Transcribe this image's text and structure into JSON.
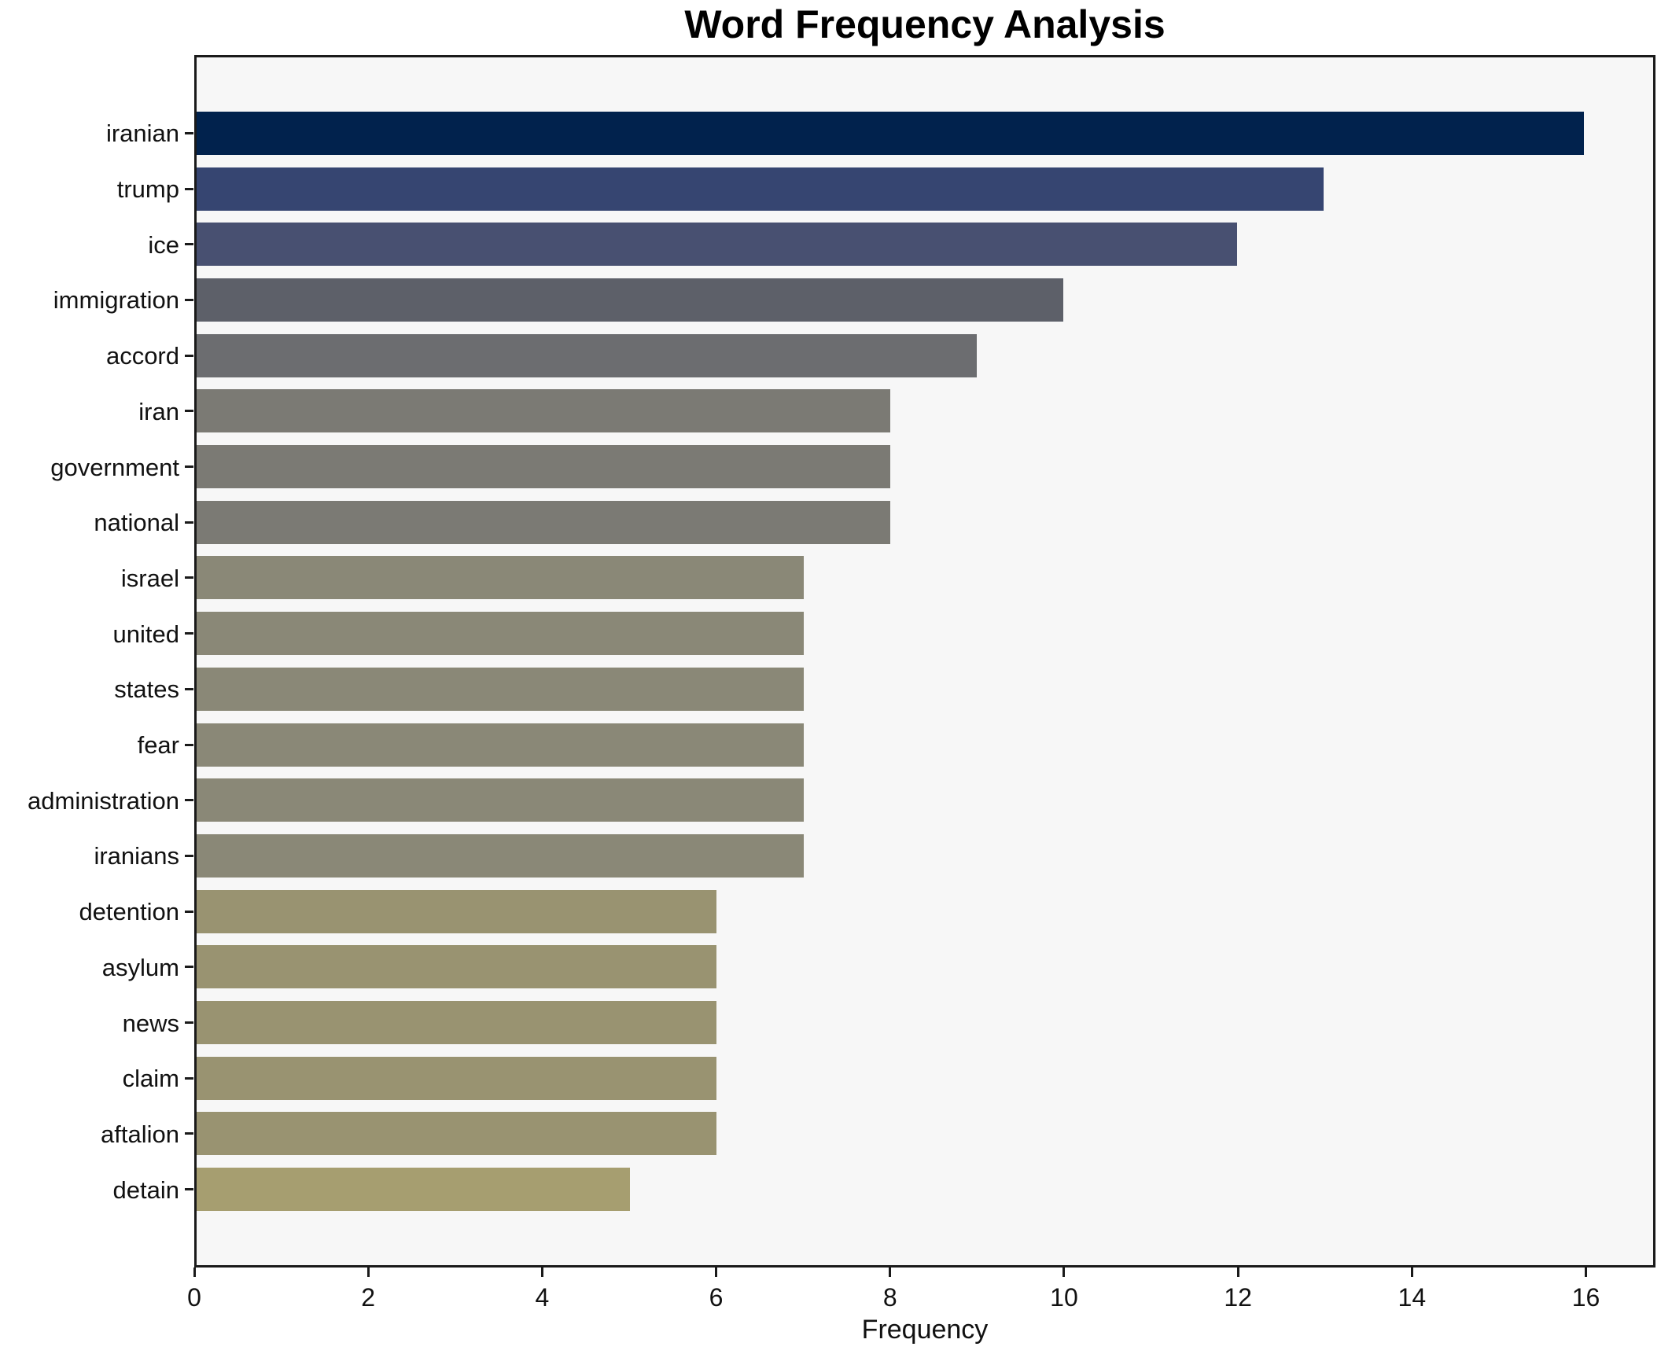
{
  "chart_data": {
    "type": "bar",
    "orientation": "horizontal",
    "title": "Word Frequency Analysis",
    "xlabel": "Frequency",
    "ylabel": "",
    "grid": false,
    "legend": null,
    "plot_background": "#f7f7f7",
    "spine_color": "#1a1a1a",
    "xlim": [
      0,
      16.8
    ],
    "x_ticks": [
      0,
      2,
      4,
      6,
      8,
      10,
      12,
      14,
      16
    ],
    "categories": [
      "iranian",
      "trump",
      "ice",
      "immigration",
      "accord",
      "iran",
      "government",
      "national",
      "israel",
      "united",
      "states",
      "fear",
      "administration",
      "iranians",
      "detention",
      "asylum",
      "news",
      "claim",
      "aftalion",
      "detain"
    ],
    "values": [
      16,
      13,
      12,
      10,
      9,
      8,
      8,
      8,
      7,
      7,
      7,
      7,
      7,
      7,
      6,
      6,
      6,
      6,
      6,
      5
    ],
    "bar_colors": [
      "#01224d",
      "#364571",
      "#485071",
      "#5d6069",
      "#6c6d70",
      "#7b7a74",
      "#7b7a74",
      "#7b7a74",
      "#8a8877",
      "#8a8877",
      "#8a8877",
      "#8a8877",
      "#8a8877",
      "#8a8877",
      "#999371",
      "#999371",
      "#999371",
      "#999371",
      "#999371",
      "#a69e70"
    ]
  }
}
